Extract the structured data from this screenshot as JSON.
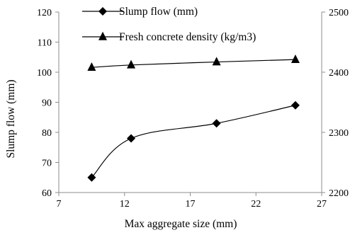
{
  "chart_data": {
    "type": "line",
    "xlabel": "Max aggregate size (mm)",
    "ylabel": "Slump flow (mm)",
    "y2label": "",
    "xlim": [
      7,
      27
    ],
    "xticks": [
      "7",
      "12",
      "17",
      "22",
      "27"
    ],
    "ylim": [
      60,
      120
    ],
    "yticks": [
      "60",
      "70",
      "80",
      "90",
      "100",
      "110",
      "120"
    ],
    "y2lim": [
      2200,
      2500
    ],
    "y2ticks": [
      "2200",
      "2300",
      "2400",
      "2500"
    ],
    "grid": false,
    "legend_position": "top-center",
    "series": [
      {
        "name": "Slump flow (mm)",
        "axis": "left",
        "marker": "diamond",
        "color": "#000000",
        "x": [
          9.5,
          12.5,
          19,
          25
        ],
        "y": [
          65,
          78,
          83,
          89
        ]
      },
      {
        "name": "Fresh concrete density (kg/m3)",
        "axis": "right",
        "marker": "triangle",
        "color": "#000000",
        "x": [
          9.5,
          12.5,
          19,
          25
        ],
        "y": [
          2408,
          2412,
          2417,
          2421
        ]
      }
    ]
  }
}
